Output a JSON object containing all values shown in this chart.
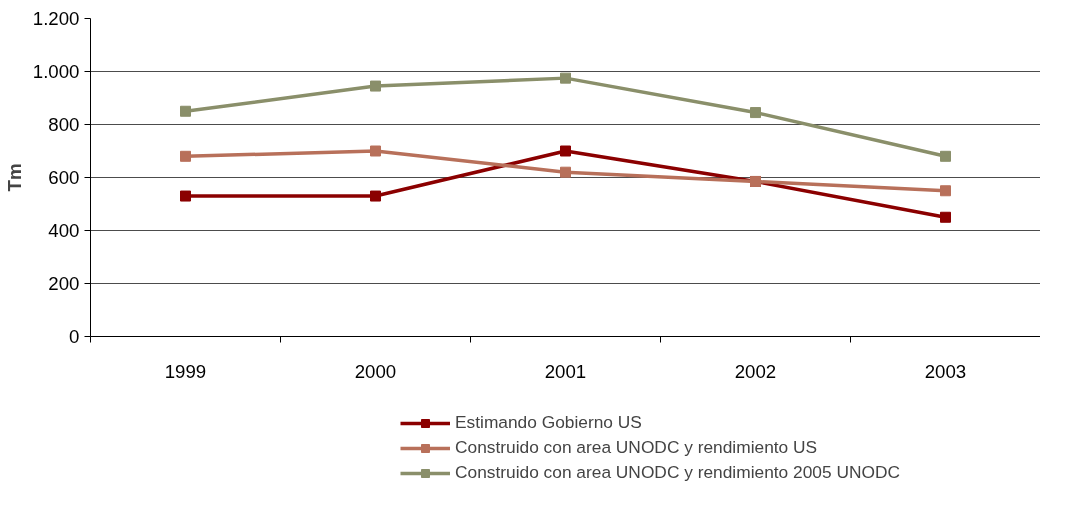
{
  "chart_data": {
    "type": "line",
    "ylabel": "Tm",
    "categories": [
      "1999",
      "2000",
      "2001",
      "2002",
      "2003"
    ],
    "series": [
      {
        "name": "Estimando Gobierno US",
        "color": "#8b0000",
        "values": [
          530,
          530,
          700,
          585,
          450
        ]
      },
      {
        "name": "Construido con area UNODC y rendimiento US",
        "color": "#b8705a",
        "values": [
          680,
          700,
          620,
          585,
          550
        ]
      },
      {
        "name": "Construido con area UNODC y rendimiento 2005 UNODC",
        "color": "#8a8f6a",
        "values": [
          850,
          945,
          975,
          845,
          680
        ]
      }
    ],
    "ylim": [
      0,
      1200
    ],
    "yticks": [
      0,
      200,
      400,
      600,
      800,
      {
        "value": 1000,
        "label": "1.000"
      },
      {
        "value": 1200,
        "label": "1.200"
      }
    ],
    "grid": "y",
    "legend": "bottom",
    "marker": "square",
    "line_style": "solid"
  }
}
